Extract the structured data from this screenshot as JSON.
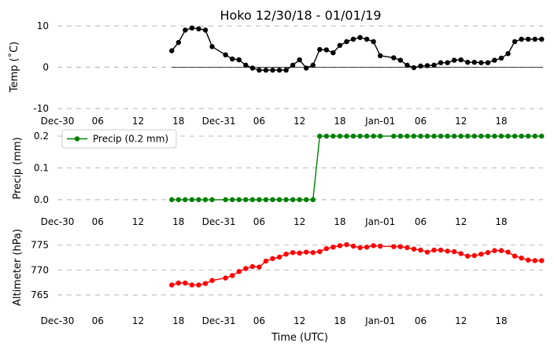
{
  "title": "Hoko 12/30/18 - 01/01/19",
  "colors": {
    "temp": "#000000",
    "precip": "#008000",
    "altimeter": "#ff0000",
    "grid": "#b0b0b0"
  },
  "chart_data": [
    {
      "type": "line",
      "ylabel": "Temp ($^\\circ$C)",
      "ylabel_display": "Temp (˚C)",
      "ylim": [
        -10,
        10
      ],
      "yticks": [
        10,
        0,
        -10
      ],
      "zero_line": true,
      "xtick_labels": [
        "Dec-30",
        "06",
        "12",
        "18",
        "Dec-31",
        "06",
        "12",
        "18",
        "Jan-01",
        "06",
        "12",
        "18"
      ],
      "xtick_hours": [
        0,
        6,
        12,
        18,
        24,
        30,
        36,
        42,
        48,
        54,
        60,
        66
      ],
      "xlim_hours": [
        0,
        72.2
      ],
      "grid": "y",
      "series": [
        {
          "color": "#000000",
          "x": [
            17,
            18,
            19,
            20,
            21,
            22,
            23,
            25,
            26,
            27,
            28,
            29,
            30,
            31,
            32,
            33,
            34,
            35,
            36,
            37,
            38,
            39,
            40,
            41,
            42,
            43,
            44,
            45,
            46,
            47,
            48,
            50,
            51,
            52,
            53,
            54,
            55,
            56,
            57,
            58,
            59,
            60,
            61,
            62,
            63,
            64,
            65,
            66,
            67,
            68,
            69,
            70,
            71,
            72
          ],
          "values": [
            4,
            6,
            9,
            9.5,
            9.3,
            9,
            5,
            3,
            2,
            1.8,
            0.5,
            -0.2,
            -0.7,
            -0.7,
            -0.7,
            -0.7,
            -0.7,
            0.5,
            1.8,
            -0.2,
            0.5,
            4.3,
            4.2,
            3.5,
            5.3,
            6.2,
            6.8,
            7.2,
            6.8,
            6.2,
            2.8,
            2.3,
            1.7,
            0.5,
            -0.1,
            0.3,
            0.4,
            0.5,
            1.1,
            1.1,
            1.7,
            1.8,
            1.2,
            1.2,
            1.1,
            1.1,
            1.7,
            2.2,
            3.3,
            6.2,
            6.8,
            6.8,
            6.8,
            6.8
          ]
        }
      ]
    },
    {
      "type": "line",
      "ylabel": "Precip (mm)",
      "ylim": [
        -0.035,
        0.225
      ],
      "yticks": [
        0.2,
        0.1,
        0.0
      ],
      "ytick_labels": [
        "0.2",
        "0.1",
        "0.0"
      ],
      "xtick_labels": [
        "Dec-30",
        "06",
        "12",
        "18",
        "Dec-31",
        "06",
        "12",
        "18",
        "Jan-01",
        "06",
        "12",
        "18"
      ],
      "xtick_hours": [
        0,
        6,
        12,
        18,
        24,
        30,
        36,
        42,
        48,
        54,
        60,
        66
      ],
      "xlim_hours": [
        0,
        72.2
      ],
      "grid": "y",
      "legend": {
        "position": "upper left",
        "label": "Precip (0.2 mm)"
      },
      "series": [
        {
          "name": "Precip (0.2 mm)",
          "color": "#008000",
          "x": [
            17,
            18,
            19,
            20,
            21,
            22,
            23,
            25,
            26,
            27,
            28,
            29,
            30,
            31,
            32,
            33,
            34,
            35,
            36,
            37,
            38,
            39,
            40,
            41,
            42,
            43,
            44,
            45,
            46,
            47,
            48,
            50,
            51,
            52,
            53,
            54,
            55,
            56,
            57,
            58,
            59,
            60,
            61,
            62,
            63,
            64,
            65,
            66,
            67,
            68,
            69,
            70,
            71,
            72
          ],
          "values": [
            0,
            0,
            0,
            0,
            0,
            0,
            0,
            0,
            0,
            0,
            0,
            0,
            0,
            0,
            0,
            0,
            0,
            0,
            0,
            0,
            0,
            0.2,
            0.2,
            0.2,
            0.2,
            0.2,
            0.2,
            0.2,
            0.2,
            0.2,
            0.2,
            0.2,
            0.2,
            0.2,
            0.2,
            0.2,
            0.2,
            0.2,
            0.2,
            0.2,
            0.2,
            0.2,
            0.2,
            0.2,
            0.2,
            0.2,
            0.2,
            0.2,
            0.2,
            0.2,
            0.2,
            0.2,
            0.2,
            0.2
          ]
        }
      ]
    },
    {
      "type": "line",
      "ylabel": "Altimeter (hPa)",
      "xlabel": "Time (UTC)",
      "ylim": [
        762,
        777
      ],
      "yticks": [
        775,
        770,
        765
      ],
      "xtick_labels": [
        "Dec-30",
        "06",
        "12",
        "18",
        "Dec-31",
        "06",
        "12",
        "18",
        "Jan-01",
        "06",
        "12",
        "18"
      ],
      "xtick_hours": [
        0,
        6,
        12,
        18,
        24,
        30,
        36,
        42,
        48,
        54,
        60,
        66
      ],
      "xlim_hours": [
        0,
        72.2
      ],
      "grid": "y",
      "series": [
        {
          "color": "#ff0000",
          "x": [
            17,
            18,
            19,
            20,
            21,
            22,
            23,
            25,
            26,
            27,
            28,
            29,
            30,
            31,
            32,
            33,
            34,
            35,
            36,
            37,
            38,
            39,
            40,
            41,
            42,
            43,
            44,
            45,
            46,
            47,
            48,
            50,
            51,
            52,
            53,
            54,
            55,
            56,
            57,
            58,
            59,
            60,
            61,
            62,
            63,
            64,
            65,
            66,
            67,
            68,
            69,
            70,
            71,
            72
          ],
          "values": [
            767,
            767.4,
            767.4,
            767,
            767,
            767.3,
            767.9,
            768.4,
            768.9,
            769.7,
            770.3,
            770.7,
            770.6,
            771.8,
            772.3,
            772.6,
            773.2,
            773.5,
            773.4,
            773.6,
            773.5,
            773.7,
            774.3,
            774.6,
            774.9,
            775.1,
            774.8,
            774.5,
            774.6,
            774.9,
            774.8,
            774.7,
            774.7,
            774.5,
            774.2,
            774,
            773.6,
            774,
            774,
            773.8,
            773.7,
            773.3,
            772.8,
            772.9,
            773.2,
            773.5,
            773.9,
            773.9,
            773.6,
            772.8,
            772.4,
            772,
            771.9,
            771.9
          ]
        }
      ]
    }
  ]
}
